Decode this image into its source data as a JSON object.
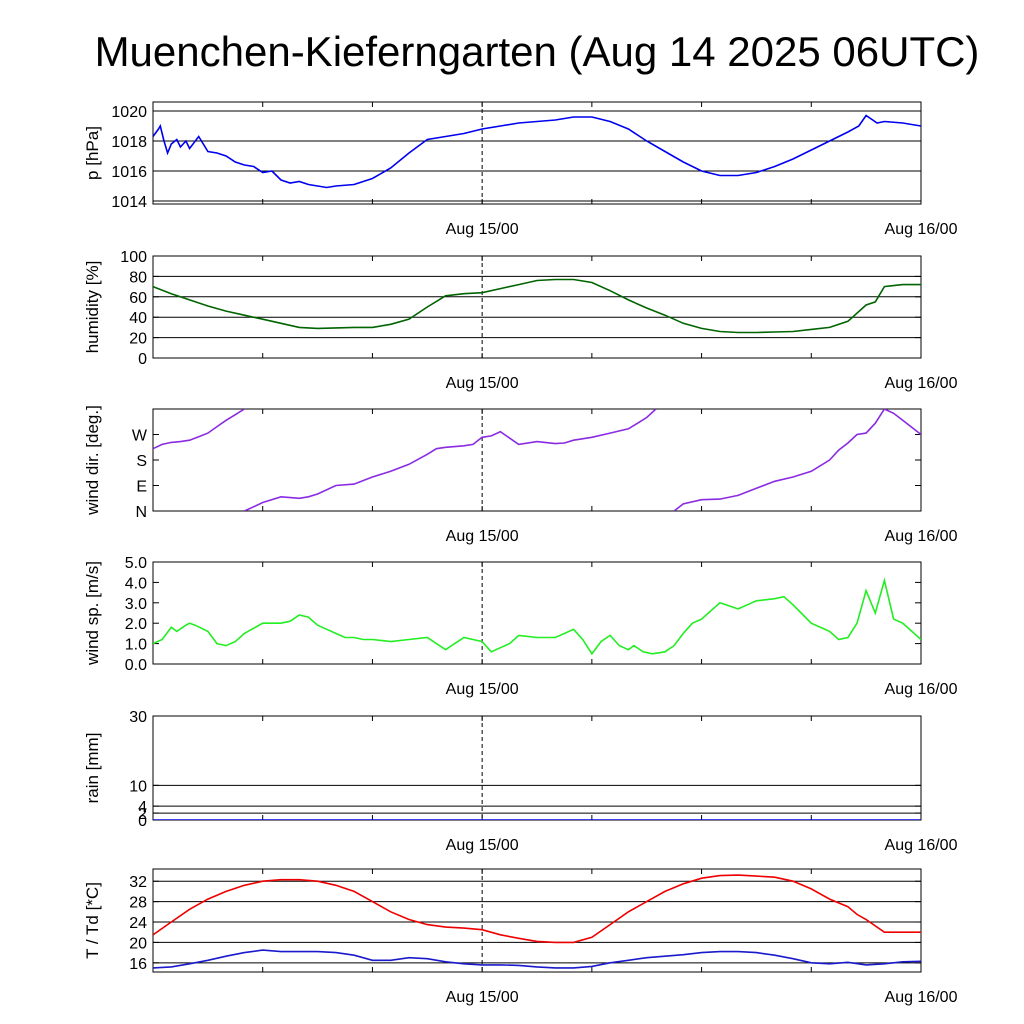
{
  "title": "Muenchen-Kieferngarten (Aug 14 2025 06UTC)",
  "x_axis": {
    "hours_total": 42,
    "minor_tick_hours": [
      6,
      12,
      18,
      24,
      30,
      36
    ],
    "major_labels": [
      {
        "hour": 18,
        "label": "Aug 15/00"
      },
      {
        "hour": 42,
        "label": "Aug 16/00"
      }
    ],
    "dashed_line_hour": 18
  },
  "chart_data": [
    {
      "id": "pressure",
      "type": "line",
      "ylabel": "p [hPa]",
      "ylim": [
        1013.8,
        1020.6
      ],
      "yticks": [
        {
          "v": 1014,
          "label": "1014"
        },
        {
          "v": 1016,
          "label": "1016"
        },
        {
          "v": 1018,
          "label": "1018"
        },
        {
          "v": 1020,
          "label": "1020"
        }
      ],
      "gridlines": [
        1014,
        1016,
        1018,
        1020
      ],
      "series": [
        {
          "name": "pressure",
          "color": "#0000ee",
          "x": [
            0,
            0.3,
            0.4,
            0.6,
            0.8,
            1,
            1.3,
            1.5,
            1.8,
            2,
            2.5,
            3,
            3.5,
            4,
            4.5,
            5,
            5.5,
            6,
            6.5,
            7,
            7.5,
            8,
            8.5,
            9,
            9.5,
            10,
            11,
            12,
            13,
            14,
            15,
            16,
            17,
            18,
            19,
            20,
            21,
            22,
            23,
            24,
            25,
            26,
            27,
            28,
            29,
            30,
            31,
            32,
            33,
            34,
            35,
            36,
            37,
            38,
            38.6,
            39,
            39.6,
            40,
            41,
            42
          ],
          "values": [
            1018.3,
            1018.8,
            1019.0,
            1018.0,
            1017.2,
            1017.8,
            1018.1,
            1017.6,
            1018.0,
            1017.5,
            1018.3,
            1017.3,
            1017.2,
            1017.0,
            1016.6,
            1016.4,
            1016.3,
            1015.9,
            1016.0,
            1015.4,
            1015.2,
            1015.3,
            1015.1,
            1015.0,
            1014.9,
            1015.0,
            1015.1,
            1015.5,
            1016.2,
            1017.2,
            1018.1,
            1018.3,
            1018.5,
            1018.8,
            1019.0,
            1019.2,
            1019.3,
            1019.4,
            1019.6,
            1019.6,
            1019.3,
            1018.8,
            1018.0,
            1017.3,
            1016.6,
            1016.0,
            1015.7,
            1015.7,
            1015.9,
            1016.3,
            1016.8,
            1017.4,
            1018.0,
            1018.6,
            1019.0,
            1019.7,
            1019.2,
            1019.3,
            1019.2,
            1019.0
          ]
        }
      ]
    },
    {
      "id": "humidity",
      "type": "line",
      "ylabel": "humidity [%]",
      "ylim": [
        0,
        100
      ],
      "yticks": [
        {
          "v": 0,
          "label": "0"
        },
        {
          "v": 20,
          "label": "20"
        },
        {
          "v": 40,
          "label": "40"
        },
        {
          "v": 60,
          "label": "60"
        },
        {
          "v": 80,
          "label": "80"
        },
        {
          "v": 100,
          "label": "100"
        }
      ],
      "gridlines": [
        20,
        40,
        60,
        80
      ],
      "series": [
        {
          "name": "humidity",
          "color": "#006400",
          "x": [
            0,
            1,
            2,
            3,
            4,
            5,
            6,
            7,
            8,
            9,
            10,
            11,
            12,
            13,
            14,
            15,
            16,
            17,
            18,
            19,
            20,
            21,
            22,
            23,
            24,
            25,
            26,
            27,
            28,
            29,
            30,
            31,
            32,
            33,
            34,
            35,
            36,
            37,
            38,
            39,
            39.5,
            40,
            41,
            42
          ],
          "values": [
            70,
            63,
            57,
            51,
            46,
            42,
            38,
            34,
            30,
            29,
            29.5,
            30,
            30,
            33,
            38,
            50,
            61,
            63,
            64,
            68,
            72,
            76,
            77,
            77,
            74,
            66,
            57,
            49,
            42,
            34,
            29,
            26,
            25,
            25,
            25.5,
            26,
            28,
            30,
            36,
            52,
            55,
            70,
            72,
            72
          ]
        }
      ]
    },
    {
      "id": "wind_direction",
      "type": "line",
      "ylabel": "wind dir. [deg.]",
      "ylim": [
        0,
        360
      ],
      "yticks": [
        {
          "v": 0,
          "label": "N"
        },
        {
          "v": 90,
          "label": "E"
        },
        {
          "v": 180,
          "label": "S"
        },
        {
          "v": 270,
          "label": "W"
        }
      ],
      "gridlines": [],
      "series": [
        {
          "name": "wind direction (part 1)",
          "color": "#8a2be2",
          "x": [
            0,
            0.5,
            1,
            1.5,
            2,
            2.5,
            3,
            3.5,
            4,
            4.5,
            5
          ],
          "values": [
            220,
            235,
            242,
            245,
            250,
            262,
            275,
            298,
            320,
            340,
            360
          ]
        },
        {
          "name": "wind direction (part 2)",
          "color": "#8a2be2",
          "x": [
            5,
            5.5,
            6,
            7,
            8,
            8.5,
            9,
            10,
            11,
            12,
            13,
            14,
            15,
            15.5,
            16,
            17,
            17.5,
            18,
            18.5,
            19,
            20,
            21,
            22,
            22.5,
            23,
            24,
            25,
            26,
            26.5,
            27,
            27.5
          ],
          "values": [
            0,
            15,
            30,
            50,
            45,
            50,
            60,
            90,
            95,
            120,
            140,
            165,
            200,
            220,
            225,
            230,
            235,
            260,
            265,
            280,
            235,
            245,
            238,
            240,
            250,
            260,
            275,
            290,
            310,
            330,
            360
          ]
        },
        {
          "name": "wind direction (part 3)",
          "color": "#8a2be2",
          "x": [
            28.5,
            29,
            30,
            31,
            32,
            33,
            34,
            35,
            36,
            37,
            37.5,
            38,
            38.5,
            39,
            39.5,
            40,
            40.5,
            41,
            42
          ],
          "values": [
            0,
            25,
            40,
            42,
            55,
            80,
            105,
            120,
            140,
            180,
            215,
            240,
            270,
            275,
            310,
            360,
            345,
            320,
            270
          ]
        }
      ]
    },
    {
      "id": "wind_speed",
      "type": "line",
      "ylabel": "wind sp. [m/s]",
      "ylim": [
        0,
        5
      ],
      "yticks": [
        {
          "v": 0,
          "label": "0.0"
        },
        {
          "v": 1,
          "label": "1.0"
        },
        {
          "v": 2,
          "label": "2.0"
        },
        {
          "v": 3,
          "label": "3.0"
        },
        {
          "v": 4,
          "label": "4.0"
        },
        {
          "v": 5,
          "label": "5.0"
        }
      ],
      "gridlines": [],
      "series": [
        {
          "name": "wind speed",
          "color": "#22ee22",
          "x": [
            0,
            0.5,
            1,
            1.3,
            1.8,
            2,
            2.3,
            3,
            3.5,
            4,
            4.5,
            5,
            6,
            7,
            7.5,
            8,
            8.5,
            9,
            9.5,
            10,
            10.5,
            11,
            11.5,
            12,
            13,
            14,
            15,
            16,
            16.5,
            17,
            17.5,
            18,
            18.5,
            19,
            19.5,
            20,
            21,
            22,
            23,
            23.5,
            24,
            24.5,
            25,
            25.5,
            26,
            26.3,
            26.8,
            27.3,
            28,
            28.5,
            29,
            29.5,
            30,
            31,
            32,
            32.5,
            33,
            34,
            34.5,
            35,
            36,
            37,
            37.5,
            38,
            38.5,
            39,
            39.5,
            40,
            40.5,
            41,
            41.5,
            42
          ],
          "values": [
            1.0,
            1.2,
            1.8,
            1.6,
            1.9,
            2.0,
            1.9,
            1.6,
            1.0,
            0.9,
            1.1,
            1.5,
            2.0,
            2.0,
            2.1,
            2.4,
            2.3,
            1.9,
            1.7,
            1.5,
            1.3,
            1.3,
            1.2,
            1.2,
            1.1,
            1.2,
            1.3,
            0.7,
            1.0,
            1.3,
            1.2,
            1.1,
            0.6,
            0.8,
            1.0,
            1.4,
            1.3,
            1.3,
            1.7,
            1.2,
            0.5,
            1.1,
            1.4,
            0.9,
            0.7,
            0.9,
            0.6,
            0.5,
            0.6,
            0.9,
            1.5,
            2.0,
            2.2,
            3.0,
            2.7,
            2.9,
            3.1,
            3.2,
            3.3,
            2.9,
            2.0,
            1.6,
            1.2,
            1.3,
            2.0,
            3.6,
            2.5,
            4.1,
            2.2,
            2.0,
            1.6,
            1.2
          ]
        }
      ]
    },
    {
      "id": "rain",
      "type": "line",
      "ylabel": "rain [mm]",
      "ylim": [
        0,
        30
      ],
      "yticks": [
        {
          "v": 0,
          "label": "0"
        },
        {
          "v": 2,
          "label": "2"
        },
        {
          "v": 4,
          "label": "4"
        },
        {
          "v": 10,
          "label": "10"
        },
        {
          "v": 30,
          "label": "30"
        }
      ],
      "gridlines": [
        2,
        4,
        10,
        30
      ],
      "series": [
        {
          "name": "rain",
          "color": "#0000ee",
          "x": [
            0,
            42
          ],
          "values": [
            0,
            0
          ]
        }
      ]
    },
    {
      "id": "temperature",
      "type": "line",
      "ylabel": "T / Td [*C]",
      "ylim": [
        14.2,
        34.4
      ],
      "yticks": [
        {
          "v": 16,
          "label": "16"
        },
        {
          "v": 20,
          "label": "20"
        },
        {
          "v": 24,
          "label": "24"
        },
        {
          "v": 28,
          "label": "28"
        },
        {
          "v": 32,
          "label": "32"
        }
      ],
      "gridlines": [
        16,
        20,
        24,
        28,
        32
      ],
      "series": [
        {
          "name": "T",
          "color": "#ee0000",
          "x": [
            0,
            1,
            2,
            3,
            4,
            5,
            6,
            7,
            8,
            9,
            10,
            11,
            12,
            13,
            14,
            15,
            16,
            17,
            18,
            19,
            20,
            21,
            22,
            23,
            24,
            25,
            26,
            27,
            28,
            29,
            30,
            31,
            32,
            33,
            34,
            35,
            36,
            37,
            38,
            38.5,
            39,
            40,
            41,
            42
          ],
          "values": [
            21.5,
            24,
            26.5,
            28.5,
            30,
            31.2,
            32,
            32.3,
            32.3,
            32,
            31.2,
            30,
            28,
            26,
            24.5,
            23.5,
            23,
            22.8,
            22.5,
            21.5,
            20.8,
            20.2,
            20,
            20,
            21,
            23.5,
            26,
            28,
            30,
            31.5,
            32.6,
            33.1,
            33.2,
            33,
            32.8,
            32,
            30.5,
            28.5,
            27,
            25.5,
            24.5,
            22,
            22,
            22
          ]
        },
        {
          "name": "Td",
          "color": "#1a1acc",
          "x": [
            0,
            1,
            2,
            3,
            4,
            5,
            6,
            7,
            8,
            9,
            10,
            11,
            12,
            13,
            14,
            15,
            16,
            17,
            18,
            19,
            20,
            21,
            22,
            23,
            24,
            25,
            26,
            27,
            28,
            29,
            30,
            31,
            32,
            33,
            34,
            35,
            36,
            37,
            38,
            39,
            40,
            41,
            42
          ],
          "values": [
            15,
            15.2,
            15.8,
            16.5,
            17.3,
            18,
            18.5,
            18.2,
            18.2,
            18.2,
            18,
            17.5,
            16.5,
            16.5,
            17,
            16.8,
            16.2,
            15.8,
            15.6,
            15.6,
            15.5,
            15.2,
            15,
            15,
            15.3,
            16,
            16.5,
            17,
            17.3,
            17.6,
            18,
            18.2,
            18.2,
            18,
            17.5,
            16.8,
            16,
            15.8,
            16.1,
            15.6,
            15.8,
            16.2,
            16.3
          ]
        }
      ]
    }
  ]
}
